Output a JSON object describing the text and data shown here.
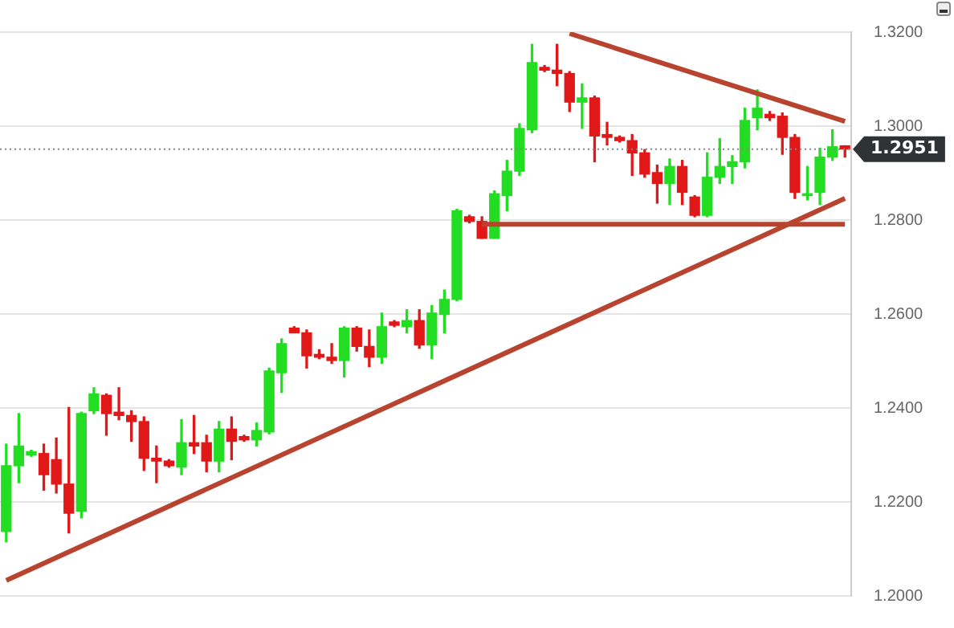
{
  "chart_data": {
    "type": "candlestick",
    "categories": [
      null,
      null,
      null,
      null,
      null,
      null,
      null,
      null,
      null,
      null,
      null,
      null,
      null,
      null,
      null,
      null,
      null,
      null,
      null,
      null,
      null,
      null,
      null,
      null,
      null,
      null,
      null,
      null,
      null,
      null,
      null,
      null,
      null,
      null,
      null,
      null,
      null,
      null,
      null,
      null,
      null,
      null,
      null,
      null,
      null,
      null,
      null,
      null,
      null,
      null,
      null,
      null,
      null,
      null,
      null,
      null,
      null,
      null,
      null,
      null,
      null,
      null,
      null,
      null,
      null,
      null,
      null,
      null
    ],
    "ohlc": [
      [
        1.2137,
        1.2323,
        1.2115,
        1.2277
      ],
      [
        1.2277,
        1.2388,
        1.2241,
        1.2319
      ],
      [
        1.23,
        1.231,
        1.2297,
        1.2307
      ],
      [
        1.2303,
        1.2323,
        1.2225,
        1.2258
      ],
      [
        1.229,
        1.2336,
        1.2219,
        1.2238
      ],
      [
        1.2238,
        1.2401,
        1.2134,
        1.2176
      ],
      [
        1.218,
        1.2391,
        1.2166,
        1.2388
      ],
      [
        1.2394,
        1.2443,
        1.2388,
        1.243
      ],
      [
        1.2427,
        1.243,
        1.2342,
        1.2388
      ],
      [
        1.2391,
        1.2443,
        1.2375,
        1.2384
      ],
      [
        1.2384,
        1.2394,
        1.2329,
        1.2371
      ],
      [
        1.2371,
        1.2381,
        1.2267,
        1.2293
      ],
      [
        1.2293,
        1.2319,
        1.2241,
        1.2287
      ],
      [
        1.2287,
        1.229,
        1.2274,
        1.2277
      ],
      [
        1.2274,
        1.2375,
        1.2258,
        1.2326
      ],
      [
        1.2326,
        1.2384,
        1.2303,
        1.2319
      ],
      [
        1.2326,
        1.2342,
        1.2264,
        1.2287
      ],
      [
        1.2287,
        1.2371,
        1.2264,
        1.2355
      ],
      [
        1.2355,
        1.2381,
        1.229,
        1.2329
      ],
      [
        1.2339,
        1.2342,
        1.2329,
        1.2332
      ],
      [
        1.2332,
        1.2368,
        1.2319,
        1.2352
      ],
      [
        1.2349,
        1.2485,
        1.2345,
        1.2479
      ],
      [
        1.2475,
        1.2547,
        1.2433,
        1.2537
      ],
      [
        1.257,
        1.2573,
        1.256,
        1.256
      ],
      [
        1.256,
        1.2566,
        1.2485,
        1.2511
      ],
      [
        1.2514,
        1.2524,
        1.2505,
        1.2508
      ],
      [
        1.2508,
        1.2537,
        1.2495,
        1.2501
      ],
      [
        1.2501,
        1.2573,
        1.2466,
        1.257
      ],
      [
        1.257,
        1.2573,
        1.2521,
        1.2531
      ],
      [
        1.2531,
        1.2566,
        1.2488,
        1.2508
      ],
      [
        1.2508,
        1.2602,
        1.2495,
        1.2573
      ],
      [
        1.2583,
        1.2586,
        1.2573,
        1.2576
      ],
      [
        1.2573,
        1.2609,
        1.256,
        1.2586
      ],
      [
        1.2586,
        1.2609,
        1.2527,
        1.2534
      ],
      [
        1.2534,
        1.2618,
        1.2505,
        1.2602
      ],
      [
        1.2599,
        1.2651,
        1.256,
        1.2631
      ],
      [
        1.2631,
        1.2823,
        1.2628,
        1.282
      ],
      [
        1.2807,
        1.281,
        1.2794,
        1.2797
      ],
      [
        1.2797,
        1.2807,
        1.2761,
        1.2761
      ],
      [
        1.2761,
        1.2862,
        1.2761,
        1.2856
      ],
      [
        1.2852,
        1.2927,
        1.282,
        1.2904
      ],
      [
        1.2904,
        1.3005,
        1.2895,
        1.2995
      ],
      [
        1.2992,
        1.3174,
        1.2986,
        1.3135
      ],
      [
        1.3125,
        1.3129,
        1.3116,
        1.3119
      ],
      [
        1.3119,
        1.3174,
        1.3086,
        1.3112
      ],
      [
        1.3112,
        1.3116,
        1.3031,
        1.3051
      ],
      [
        1.3051,
        1.309,
        1.2995,
        1.306
      ],
      [
        1.306,
        1.3064,
        1.2924,
        1.2979
      ],
      [
        1.2982,
        1.3008,
        1.296,
        1.2976
      ],
      [
        1.2976,
        1.2979,
        1.2966,
        1.2969
      ],
      [
        1.2969,
        1.2982,
        1.2895,
        1.2943
      ],
      [
        1.2943,
        1.295,
        1.2891,
        1.2898
      ],
      [
        1.2901,
        1.2917,
        1.2836,
        1.2878
      ],
      [
        1.2878,
        1.293,
        1.2833,
        1.2914
      ],
      [
        1.2914,
        1.2927,
        1.2833,
        1.2859
      ],
      [
        1.2849,
        1.2852,
        1.2807,
        1.281
      ],
      [
        1.281,
        1.2943,
        1.2807,
        1.2891
      ],
      [
        1.2891,
        1.2973,
        1.2878,
        1.2914
      ],
      [
        1.2914,
        1.2937,
        1.2878,
        1.2924
      ],
      [
        1.2924,
        1.3038,
        1.2911,
        1.3012
      ],
      [
        1.3018,
        1.3077,
        1.2992,
        1.3038
      ],
      [
        1.3025,
        1.3031,
        1.3012,
        1.3018
      ],
      [
        1.3021,
        1.3028,
        1.294,
        1.2976
      ],
      [
        1.2976,
        1.2982,
        1.2846,
        1.2859
      ],
      [
        1.2852,
        1.2914,
        1.2843,
        1.2856
      ],
      [
        1.2859,
        1.2953,
        1.2833,
        1.2934
      ],
      [
        1.2934,
        1.2992,
        1.2927,
        1.2956
      ],
      [
        1.2958,
        1.2958,
        1.2934,
        1.2951
      ]
    ],
    "series": [
      {
        "type": "line",
        "color": "#b8432f",
        "values": [
          1.2033,
          null,
          null,
          null,
          null,
          null,
          null,
          null,
          null,
          null,
          null,
          null,
          null,
          null,
          null,
          null,
          null,
          null,
          null,
          null,
          null,
          null,
          null,
          null,
          null,
          null,
          null,
          null,
          null,
          null,
          null,
          null,
          null,
          null,
          null,
          null,
          null,
          null,
          null,
          null,
          null,
          null,
          null,
          null,
          null,
          null,
          null,
          null,
          null,
          null,
          null,
          null,
          null,
          null,
          null,
          null,
          null,
          null,
          null,
          null,
          null,
          null,
          null,
          null,
          null,
          null,
          null,
          1.2846
        ]
      },
      {
        "type": "line",
        "color": "#b8432f",
        "values": [
          null,
          null,
          null,
          null,
          null,
          null,
          null,
          null,
          null,
          null,
          null,
          null,
          null,
          null,
          null,
          null,
          null,
          null,
          null,
          null,
          null,
          null,
          null,
          null,
          null,
          null,
          null,
          null,
          null,
          null,
          null,
          null,
          null,
          null,
          null,
          null,
          null,
          null,
          null,
          null,
          null,
          null,
          null,
          null,
          null,
          1.3197,
          null,
          null,
          null,
          null,
          null,
          null,
          null,
          null,
          null,
          null,
          null,
          null,
          null,
          null,
          null,
          null,
          null,
          null,
          null,
          null,
          null,
          1.301
        ]
      },
      {
        "type": "line",
        "color": "#b8432f",
        "values": [
          null,
          null,
          null,
          null,
          null,
          null,
          null,
          null,
          null,
          null,
          null,
          null,
          null,
          null,
          null,
          null,
          null,
          null,
          null,
          null,
          null,
          null,
          null,
          null,
          null,
          null,
          null,
          null,
          null,
          null,
          null,
          null,
          null,
          null,
          null,
          null,
          null,
          null,
          1.2791,
          null,
          null,
          null,
          null,
          null,
          null,
          null,
          null,
          null,
          null,
          null,
          null,
          null,
          null,
          null,
          null,
          null,
          null,
          null,
          null,
          null,
          null,
          null,
          null,
          null,
          null,
          null,
          null,
          1.2791
        ]
      }
    ],
    "ylim": [
      1.2,
      1.32
    ],
    "yticks": [
      {
        "value": 1.2,
        "label": "1.2000"
      },
      {
        "value": 1.22,
        "label": "1.2200"
      },
      {
        "value": 1.24,
        "label": "1.2400"
      },
      {
        "value": 1.26,
        "label": "1.2600"
      },
      {
        "value": 1.28,
        "label": "1.2800"
      },
      {
        "value": 1.3,
        "label": "1.3000"
      },
      {
        "value": 1.32,
        "label": "1.3200"
      }
    ],
    "ref_lines": [
      {
        "axis": "y",
        "value": 1.2951,
        "label": "1.2951",
        "color": "#888888",
        "line_style": "dotted"
      }
    ],
    "grid": "y",
    "tick_labels": "y"
  }
}
